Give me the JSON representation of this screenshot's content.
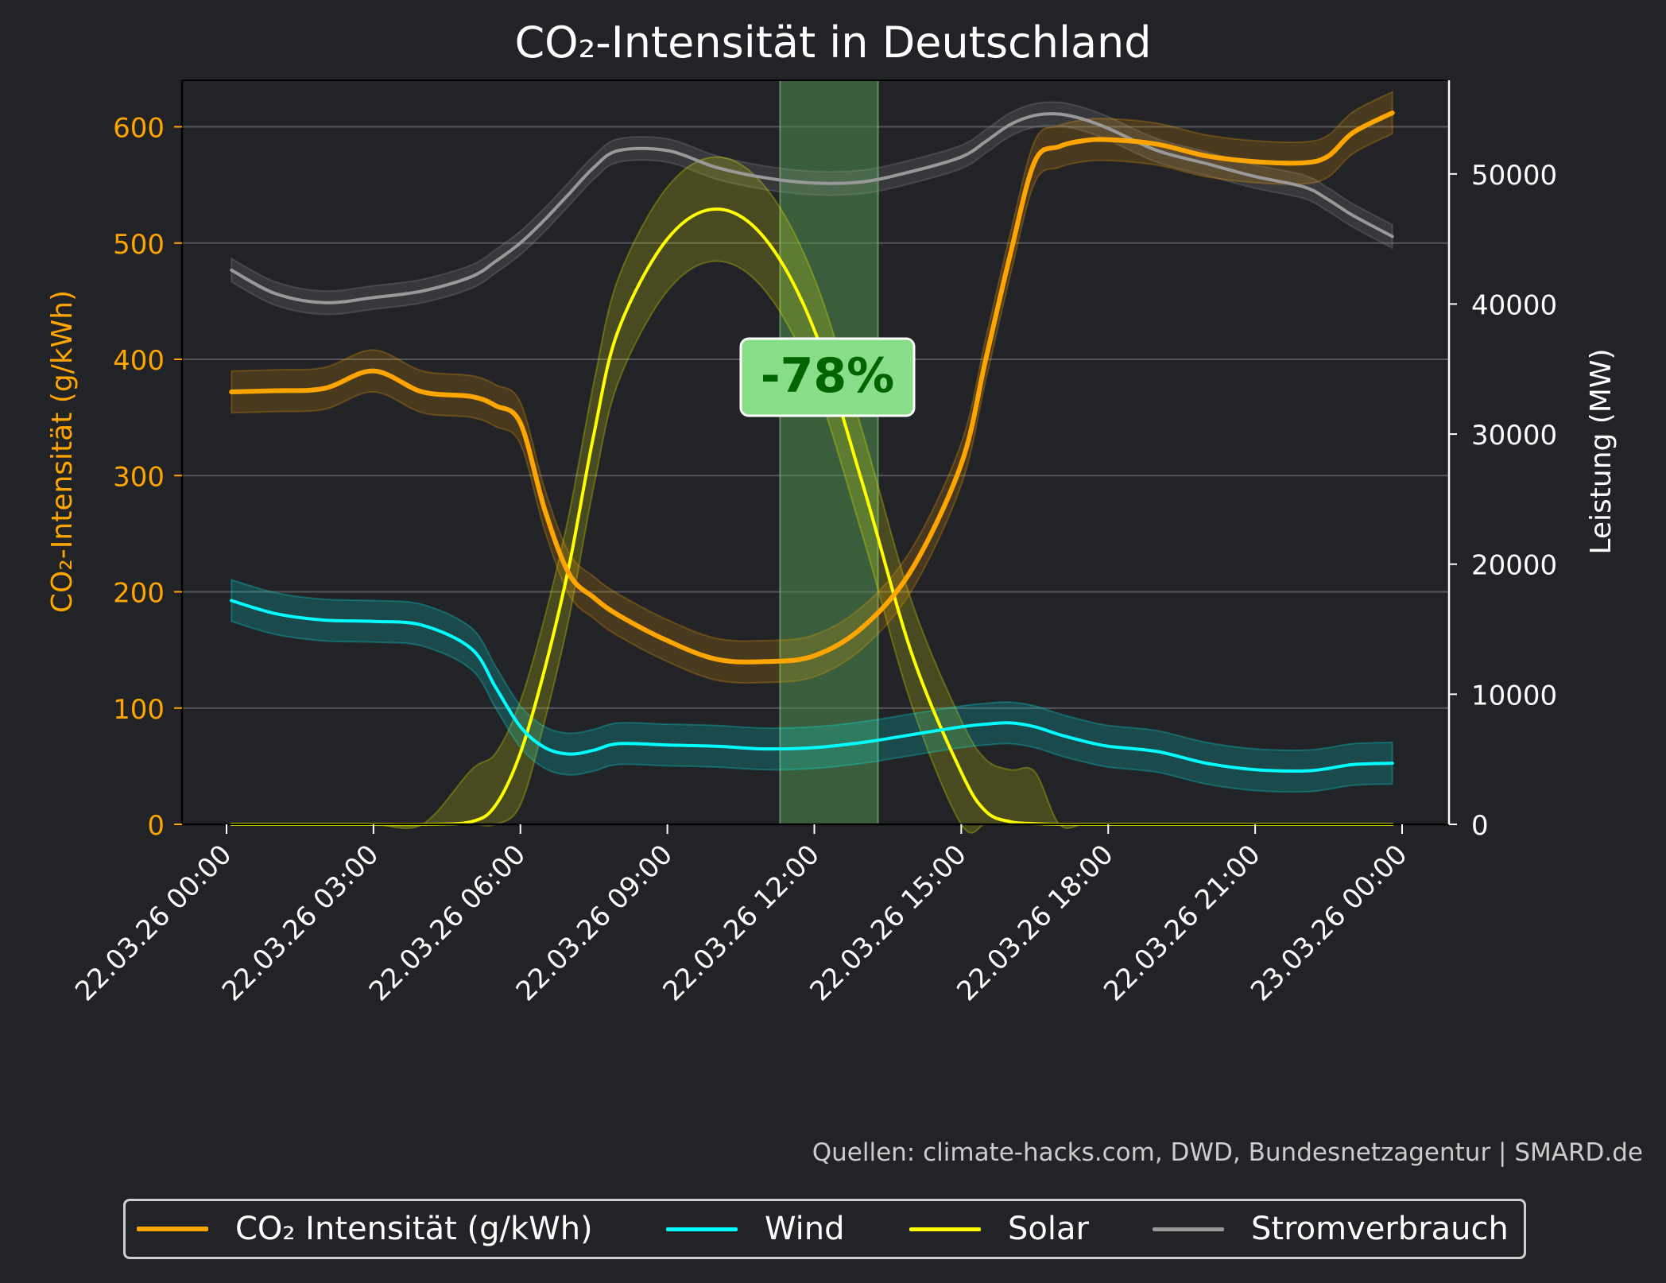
{
  "chart_data": {
    "type": "line",
    "title": "CO₂-Intensität in Deutschland",
    "ylabel": "CO₂-Intensität (g/kWh)",
    "ylabel_right": "Leistung (MW)",
    "ylim": [
      0,
      640
    ],
    "ylim_right": [
      0,
      57200
    ],
    "yticks": [
      "0",
      "100",
      "200",
      "300",
      "400",
      "500",
      "600"
    ],
    "yticks_right": [
      "0",
      "10000",
      "20000",
      "30000",
      "40000",
      "50000"
    ],
    "xticks": [
      "22.03.26 00:00",
      "22.03.26 03:00",
      "22.03.26 06:00",
      "22.03.26 09:00",
      "22.03.26 12:00",
      "22.03.26 15:00",
      "22.03.26 18:00",
      "22.03.26 21:00",
      "23.03.26 00:00"
    ],
    "x_hours": [
      0.1,
      1,
      2,
      3,
      4,
      5,
      5.5,
      6,
      6.5,
      7,
      7.5,
      8,
      9,
      10,
      11,
      12,
      13,
      14,
      15,
      15.5,
      16,
      16.5,
      17,
      17.5,
      18,
      19,
      20,
      21,
      22,
      22.5,
      23,
      23.8
    ],
    "grid": true,
    "highlight_window_hours": [
      11.3,
      13.3
    ],
    "annotation": "-78%",
    "source": "Quellen: climate-hacks.com, DWD, Bundesnetzagentur | SMARD.de",
    "legend_position": "bottom",
    "series": [
      {
        "name": "CO₂ Intensität (g/kWh)",
        "axis": "left",
        "color": "#ffa500",
        "values": [
          372,
          373,
          375,
          390,
          372,
          368,
          360,
          345,
          270,
          215,
          195,
          180,
          158,
          142,
          140,
          145,
          170,
          220,
          310,
          400,
          490,
          570,
          583,
          588,
          589,
          585,
          575,
          570,
          569,
          575,
          595,
          612
        ],
        "band": 18
      },
      {
        "name": "Wind",
        "axis": "right",
        "color": "#00ffff",
        "values": [
          17200,
          16200,
          15700,
          15600,
          15300,
          13500,
          10500,
          7500,
          5900,
          5400,
          5700,
          6200,
          6100,
          6000,
          5800,
          5900,
          6300,
          6900,
          7500,
          7700,
          7800,
          7500,
          6900,
          6400,
          6000,
          5600,
          4700,
          4200,
          4100,
          4300,
          4600,
          4700
        ],
        "band": 1600
      },
      {
        "name": "Solar",
        "axis": "right",
        "color": "#ffff00",
        "values": [
          0,
          0,
          0,
          0,
          0,
          200,
          1500,
          5500,
          12000,
          20000,
          30000,
          38000,
          45000,
          47300,
          45000,
          38000,
          26000,
          13000,
          4000,
          1000,
          200,
          50,
          0,
          0,
          0,
          0,
          0,
          0,
          0,
          0,
          0,
          0
        ],
        "band": 4000
      },
      {
        "name": "Stromverbrauch",
        "axis": "right",
        "color": "#999999",
        "values": [
          42600,
          40800,
          40100,
          40500,
          41000,
          42100,
          43300,
          44700,
          46500,
          48500,
          50500,
          51800,
          51800,
          50500,
          49700,
          49300,
          49400,
          50200,
          51300,
          52500,
          53800,
          54500,
          54600,
          54200,
          53500,
          51800,
          50800,
          49800,
          49000,
          48000,
          46800,
          45200
        ],
        "band": 900
      }
    ]
  }
}
